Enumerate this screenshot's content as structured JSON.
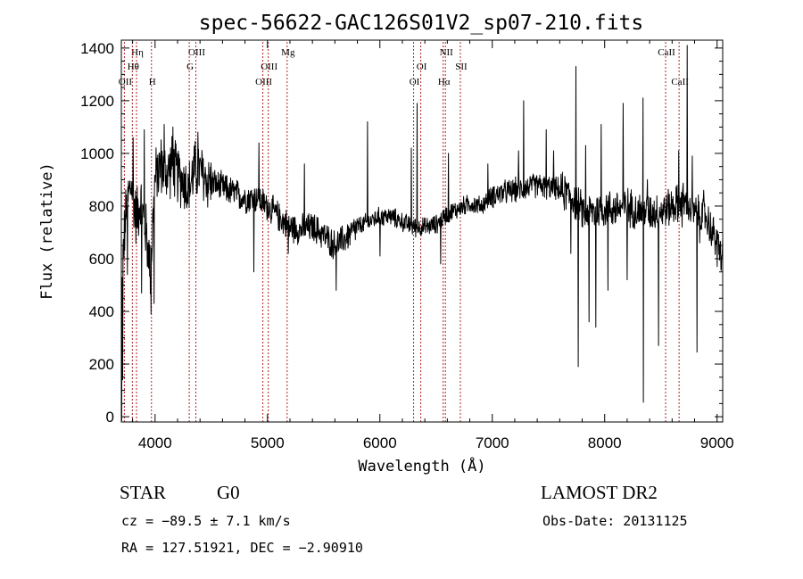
{
  "chart_data": {
    "type": "line",
    "title": "spec-56622-GAC126S01V2_sp07-210.fits",
    "xlabel": "Wavelength (Å)",
    "ylabel": "Flux (relative)",
    "xlim": [
      3700,
      9050
    ],
    "ylim": [
      -20,
      1430
    ],
    "x_ticks": [
      4000,
      5000,
      6000,
      7000,
      8000,
      9000
    ],
    "y_ticks": [
      0,
      200,
      400,
      600,
      800,
      1000,
      1200,
      1400
    ],
    "grid": false,
    "line_color": "#000000",
    "marker_color": "#b22222",
    "spectral_lines": [
      {
        "label": "Hη",
        "wavelength": 3835,
        "row": 0
      },
      {
        "label": "Hθ",
        "wavelength": 3798,
        "row": 1
      },
      {
        "label": "OII",
        "wavelength": 3727,
        "row": 2
      },
      {
        "label": "H",
        "wavelength": 3968,
        "row": 2
      },
      {
        "label": "OIII",
        "wavelength": 4363,
        "row": 0
      },
      {
        "label": "G",
        "wavelength": 4304,
        "row": 1
      },
      {
        "label": "OIII",
        "wavelength": 5007,
        "row": 1
      },
      {
        "label": "OIII",
        "wavelength": 4959,
        "row": 2
      },
      {
        "label": "Mg",
        "wavelength": 5175,
        "row": 0
      },
      {
        "label": "NII",
        "wavelength": 6583,
        "row": 0
      },
      {
        "label": "OI",
        "wavelength": 6364,
        "row": 1
      },
      {
        "label": "SII",
        "wavelength": 6716,
        "row": 1
      },
      {
        "label": "OI",
        "wavelength": 6300,
        "row": 2
      },
      {
        "label": "Hα",
        "wavelength": 6563,
        "row": 2
      },
      {
        "label": "CaII",
        "wavelength": 8542,
        "row": 0
      },
      {
        "label": "CaII",
        "wavelength": 8662,
        "row": 2
      }
    ],
    "spectrum_anchors": [
      [
        3700,
        420
      ],
      [
        3720,
        650
      ],
      [
        3750,
        820
      ],
      [
        3790,
        880
      ],
      [
        3830,
        760
      ],
      [
        3870,
        820
      ],
      [
        3920,
        700
      ],
      [
        3960,
        560
      ],
      [
        4000,
        900
      ],
      [
        4050,
        960
      ],
      [
        4100,
        920
      ],
      [
        4150,
        960
      ],
      [
        4200,
        920
      ],
      [
        4250,
        900
      ],
      [
        4300,
        860
      ],
      [
        4350,
        940
      ],
      [
        4400,
        930
      ],
      [
        4450,
        900
      ],
      [
        4500,
        890
      ],
      [
        4600,
        870
      ],
      [
        4700,
        850
      ],
      [
        4800,
        830
      ],
      [
        4900,
        830
      ],
      [
        5000,
        800
      ],
      [
        5100,
        760
      ],
      [
        5200,
        720
      ],
      [
        5300,
        710
      ],
      [
        5400,
        720
      ],
      [
        5500,
        690
      ],
      [
        5600,
        650
      ],
      [
        5700,
        680
      ],
      [
        5800,
        720
      ],
      [
        5900,
        740
      ],
      [
        6000,
        760
      ],
      [
        6100,
        760
      ],
      [
        6200,
        740
      ],
      [
        6300,
        720
      ],
      [
        6400,
        720
      ],
      [
        6500,
        730
      ],
      [
        6600,
        770
      ],
      [
        6700,
        790
      ],
      [
        6800,
        810
      ],
      [
        6900,
        800
      ],
      [
        7000,
        840
      ],
      [
        7100,
        850
      ],
      [
        7200,
        860
      ],
      [
        7300,
        870
      ],
      [
        7400,
        880
      ],
      [
        7500,
        870
      ],
      [
        7600,
        860
      ],
      [
        7700,
        840
      ],
      [
        7800,
        780
      ],
      [
        7900,
        780
      ],
      [
        8000,
        790
      ],
      [
        8100,
        790
      ],
      [
        8200,
        800
      ],
      [
        8300,
        780
      ],
      [
        8400,
        780
      ],
      [
        8500,
        780
      ],
      [
        8600,
        800
      ],
      [
        8700,
        820
      ],
      [
        8800,
        770
      ],
      [
        8900,
        760
      ],
      [
        9000,
        660
      ],
      [
        9050,
        600
      ]
    ],
    "spectrum_features": [
      [
        3702,
        -15
      ],
      [
        3712,
        140
      ],
      [
        3755,
        540
      ],
      [
        3805,
        1060
      ],
      [
        3880,
        470
      ],
      [
        3905,
        1090
      ],
      [
        3935,
        620
      ],
      [
        3965,
        390
      ],
      [
        3990,
        430
      ],
      [
        4080,
        1110
      ],
      [
        4160,
        1100
      ],
      [
        4380,
        1080
      ],
      [
        4880,
        550
      ],
      [
        4925,
        1040
      ],
      [
        5185,
        620
      ],
      [
        5330,
        960
      ],
      [
        5610,
        480
      ],
      [
        5890,
        1120
      ],
      [
        6000,
        610
      ],
      [
        6280,
        1020
      ],
      [
        6330,
        1190
      ],
      [
        6540,
        580
      ],
      [
        6610,
        1000
      ],
      [
        6960,
        960
      ],
      [
        7235,
        1010
      ],
      [
        7280,
        1200
      ],
      [
        7480,
        1090
      ],
      [
        7545,
        1010
      ],
      [
        7700,
        620
      ],
      [
        7730,
        800
      ],
      [
        7745,
        1330
      ],
      [
        7765,
        190
      ],
      [
        7830,
        1030
      ],
      [
        7860,
        360
      ],
      [
        7920,
        340
      ],
      [
        7970,
        1110
      ],
      [
        8030,
        480
      ],
      [
        8165,
        1190
      ],
      [
        8200,
        520
      ],
      [
        8340,
        1210
      ],
      [
        8345,
        55
      ],
      [
        8380,
        900
      ],
      [
        8480,
        270
      ],
      [
        8660,
        1010
      ],
      [
        8690,
        720
      ],
      [
        8735,
        1410
      ],
      [
        8780,
        990
      ],
      [
        8820,
        245
      ],
      [
        8845,
        660
      ],
      [
        8880,
        860
      ],
      [
        8950,
        650
      ],
      [
        9000,
        570
      ]
    ]
  },
  "info": {
    "object_class": "STAR",
    "subclass": "G0",
    "cz": "cz = −89.5 ± 7.1 km/s",
    "coords": "RA = 127.51921, DEC =  −2.90910",
    "survey": "LAMOST DR2",
    "obs_date": "Obs-Date: 20131125"
  }
}
